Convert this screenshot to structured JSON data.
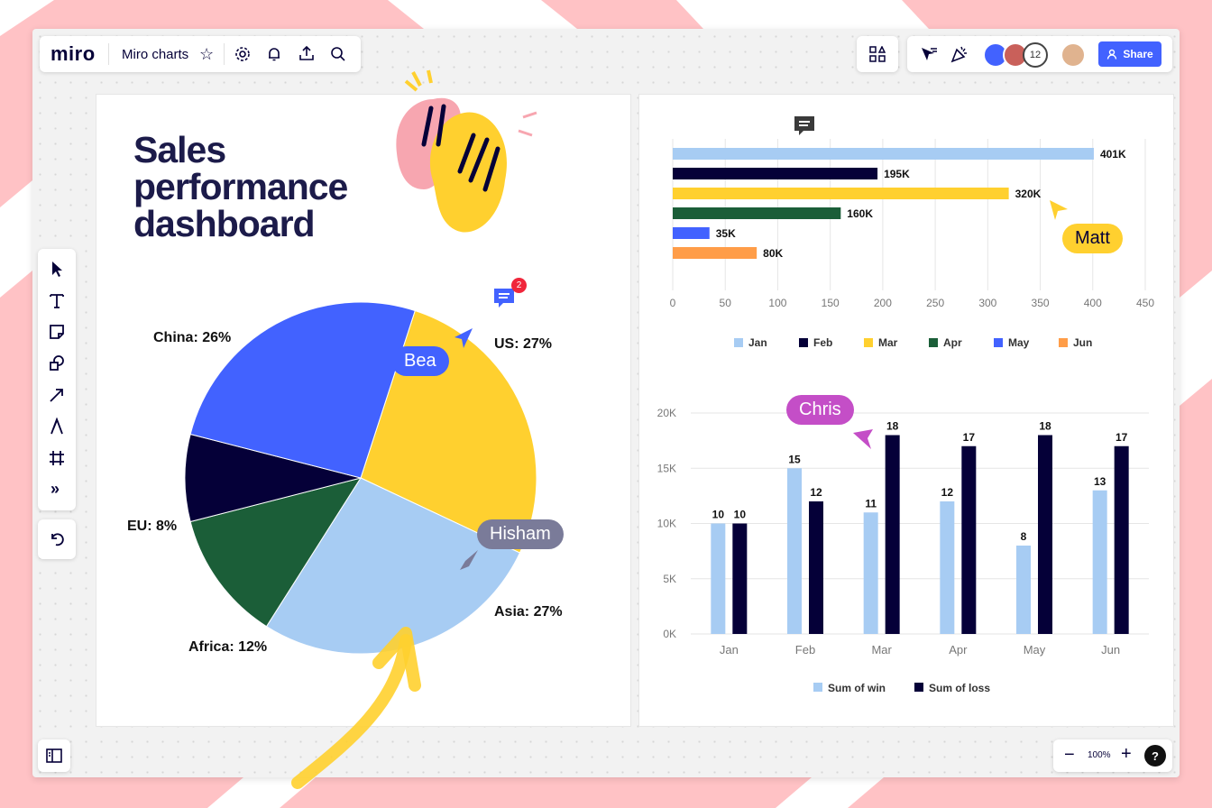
{
  "app": {
    "logo": "miro",
    "board_name": "Miro charts"
  },
  "header": {
    "collaborator_count": "12",
    "share_label": "Share"
  },
  "zoom": {
    "level": "100%",
    "minus": "−",
    "plus": "+",
    "help": "?"
  },
  "left_toolbar": {
    "more": "»"
  },
  "dashboard": {
    "title_line1": "Sales",
    "title_line2": "performance",
    "title_line3": "dashboard"
  },
  "comments": {
    "badge_count": "2"
  },
  "cursors": {
    "bea": "Bea",
    "hisham": "Hisham",
    "matt": "Matt",
    "chris": "Chris"
  },
  "colors": {
    "accent": "#4262ff",
    "navy": "#050038",
    "yellow": "#ffd02f",
    "light_blue": "#a7ccf3",
    "green": "#1b5e38",
    "blue": "#4262ff",
    "orange": "#ff9d48"
  },
  "chart_data": [
    {
      "type": "pie",
      "slices": [
        {
          "label": "US: 27%",
          "value": 27,
          "color": "#ffd02f"
        },
        {
          "label": "Asia: 27%",
          "value": 27,
          "color": "#a7ccf3"
        },
        {
          "label": "Africa: 12%",
          "value": 12,
          "color": "#1b5e38"
        },
        {
          "label": "EU: 8%",
          "value": 8,
          "color": "#050038"
        },
        {
          "label": "China: 26%",
          "value": 26,
          "color": "#4262ff"
        }
      ]
    },
    {
      "type": "bar",
      "orientation": "horizontal",
      "categories": [
        "Jan",
        "Feb",
        "Mar",
        "Apr",
        "May",
        "Jun"
      ],
      "values": [
        401,
        195,
        320,
        160,
        35,
        80
      ],
      "data_labels": [
        "401K",
        "195K",
        "320K",
        "160K",
        "35K",
        "80K"
      ],
      "colors": [
        "#a7ccf3",
        "#050038",
        "#ffd02f",
        "#1b5e38",
        "#4262ff",
        "#ff9d48"
      ],
      "xticks": [
        "0",
        "50",
        "100",
        "150",
        "200",
        "250",
        "300",
        "350",
        "400",
        "450"
      ],
      "xlim": [
        0,
        450
      ],
      "legend": [
        "Jan",
        "Feb",
        "Mar",
        "Apr",
        "May",
        "Jun"
      ],
      "legend_position": "bottom",
      "grid": true
    },
    {
      "type": "bar",
      "categories": [
        "Jan",
        "Feb",
        "Mar",
        "Apr",
        "May",
        "Jun"
      ],
      "series": [
        {
          "name": "Sum of win",
          "values": [
            10,
            15,
            11,
            12,
            8,
            13
          ],
          "color": "#a7ccf3"
        },
        {
          "name": "Sum of loss",
          "values": [
            10,
            12,
            18,
            17,
            18,
            17
          ],
          "color": "#050038"
        }
      ],
      "yticks": [
        "0K",
        "5K",
        "10K",
        "15K",
        "20K"
      ],
      "ylim": [
        0,
        20
      ],
      "legend_position": "bottom",
      "grid": true
    }
  ]
}
